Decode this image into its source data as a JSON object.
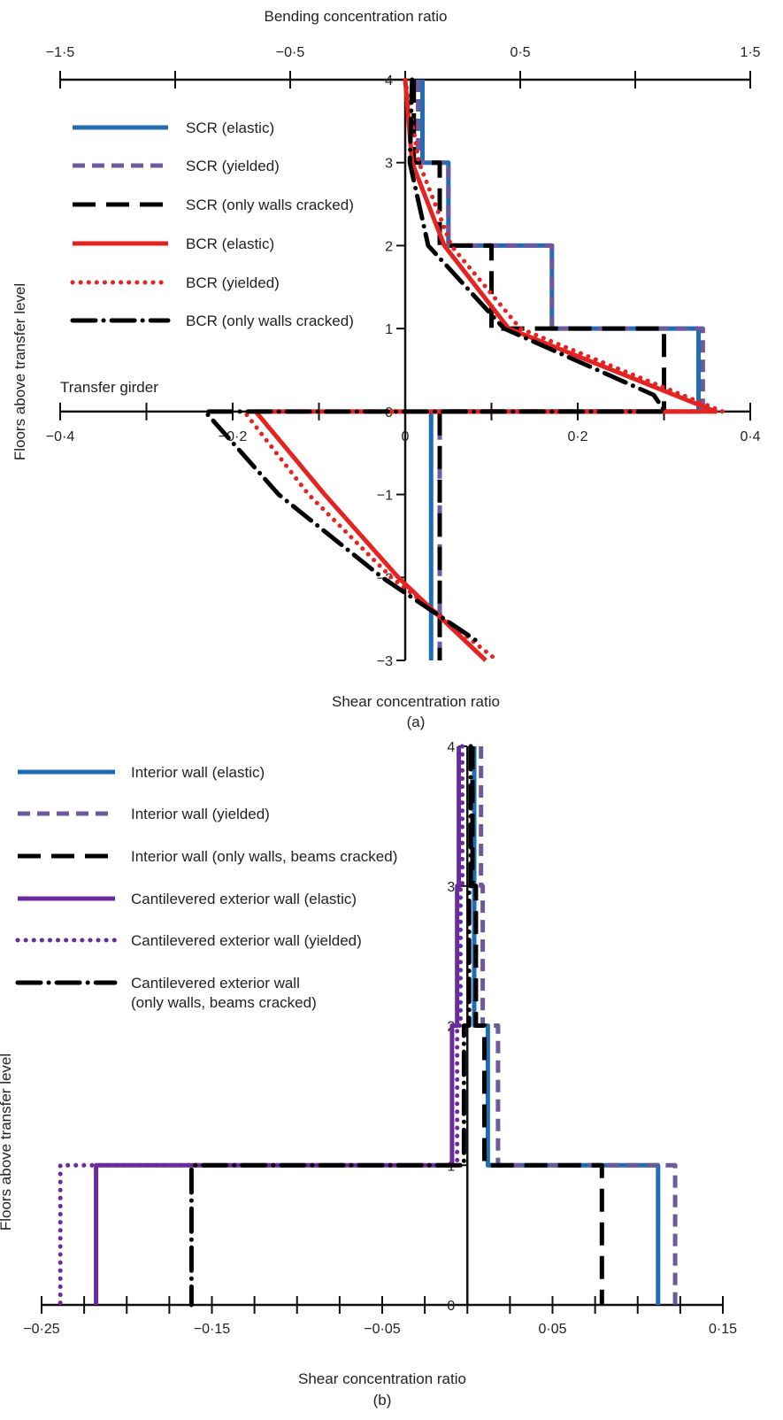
{
  "chart_data": [
    {
      "type": "line",
      "panel_label": "(a)",
      "ylabel": "Floors above transfer level",
      "annotation": "Transfer girder",
      "y_ticks": [
        "4",
        "3",
        "2",
        "1",
        "0",
        "−1",
        "−2",
        "−3"
      ],
      "top_axis": {
        "label": "Bending concentration ratio",
        "range": [
          -1.5,
          1.5
        ],
        "tick_labels": [
          "−1·5",
          "−0·5",
          "0·5",
          "1·5"
        ],
        "tick_values": [
          -1.5,
          -0.5,
          0.5,
          1.5
        ]
      },
      "bottom_axis": {
        "label": "Shear concentration ratio",
        "range": [
          -0.4,
          0.4
        ],
        "tick_labels": [
          "−0·4",
          "−0·2",
          "0",
          "0·2",
          "0·4"
        ],
        "tick_values": [
          -0.4,
          -0.2,
          0,
          0.2,
          0.4
        ]
      },
      "series": [
        {
          "name": "SCR (elastic)",
          "axis": "bottom",
          "color": "#1f6db5",
          "style": "solid",
          "points": [
            [
              0.02,
              4
            ],
            [
              0.02,
              3
            ],
            [
              0.05,
              3
            ],
            [
              0.05,
              2
            ],
            [
              0.17,
              2
            ],
            [
              0.17,
              1
            ],
            [
              0.34,
              1
            ],
            [
              0.34,
              0
            ],
            [
              0.03,
              0
            ],
            [
              0.03,
              -3
            ]
          ]
        },
        {
          "name": "SCR (yielded)",
          "axis": "bottom",
          "color": "#6e5a9b",
          "style": "dashed",
          "points": [
            [
              0.015,
              4
            ],
            [
              0.015,
              3
            ],
            [
              0.05,
              3
            ],
            [
              0.05,
              2
            ],
            [
              0.17,
              2
            ],
            [
              0.17,
              1
            ],
            [
              0.345,
              1
            ],
            [
              0.345,
              0
            ],
            [
              0.04,
              0
            ],
            [
              0.04,
              -3
            ]
          ]
        },
        {
          "name": "SCR (only walls cracked)",
          "axis": "bottom",
          "color": "#000000",
          "style": "longdash",
          "points": [
            [
              0.01,
              4
            ],
            [
              0.01,
              3
            ],
            [
              0.04,
              3
            ],
            [
              0.04,
              2
            ],
            [
              0.1,
              2
            ],
            [
              0.1,
              1
            ],
            [
              0.3,
              1
            ],
            [
              0.3,
              0
            ],
            [
              0.04,
              0
            ],
            [
              0.04,
              -3
            ]
          ]
        },
        {
          "name": "BCR (elastic)",
          "axis": "top",
          "color": "#e52421",
          "style": "solid",
          "points": [
            [
              0.0,
              4
            ],
            [
              0.03,
              3
            ],
            [
              0.17,
              2
            ],
            [
              0.45,
              1
            ],
            [
              1.35,
              0
            ],
            [
              -0.65,
              0
            ],
            [
              -0.35,
              -1
            ],
            [
              -0.03,
              -2
            ],
            [
              0.35,
              -3
            ]
          ]
        },
        {
          "name": "BCR (yielded)",
          "axis": "top",
          "color": "#e52421",
          "style": "dotted",
          "points": [
            [
              0.0,
              4
            ],
            [
              0.06,
              3
            ],
            [
              0.2,
              2
            ],
            [
              0.5,
              1
            ],
            [
              1.38,
              0
            ],
            [
              -0.7,
              0
            ],
            [
              -0.42,
              -1
            ],
            [
              -0.06,
              -2
            ],
            [
              0.4,
              -3
            ]
          ]
        },
        {
          "name": "BCR (only walls cracked)",
          "axis": "top",
          "color": "#000000",
          "style": "dashdot",
          "points": [
            [
              0.03,
              4
            ],
            [
              0.02,
              3
            ],
            [
              0.1,
              2
            ],
            [
              0.43,
              1
            ],
            [
              1.08,
              0.2
            ],
            [
              1.13,
              0
            ],
            [
              -0.87,
              0
            ],
            [
              -0.55,
              -1
            ],
            [
              -0.1,
              -2
            ],
            [
              0.33,
              -2.8
            ]
          ]
        }
      ]
    },
    {
      "type": "line",
      "panel_label": "(b)",
      "ylabel": "Floors  above transfer level",
      "y_ticks": [
        "4",
        "3",
        "2",
        "1",
        "0"
      ],
      "bottom_axis": {
        "label": "Shear concentration ratio",
        "range": [
          -0.25,
          0.15
        ],
        "tick_labels": [
          "−0·25",
          "−0·15",
          "−0·05",
          "0·05",
          "0·15"
        ],
        "tick_values": [
          -0.25,
          -0.15,
          -0.05,
          0.05,
          0.15
        ]
      },
      "series": [
        {
          "name": "Interior wall (elastic)",
          "color": "#1f6db5",
          "style": "solid",
          "points": [
            [
              0.004,
              4
            ],
            [
              0.004,
              3
            ],
            [
              0.004,
              3
            ],
            [
              0.004,
              2
            ],
            [
              0.012,
              2
            ],
            [
              0.012,
              1
            ],
            [
              0.112,
              1
            ],
            [
              0.112,
              0
            ]
          ]
        },
        {
          "name": "Interior wall (yielded)",
          "color": "#6e5a9b",
          "style": "dashed",
          "points": [
            [
              0.008,
              4
            ],
            [
              0.008,
              3
            ],
            [
              0.009,
              3
            ],
            [
              0.009,
              2
            ],
            [
              0.018,
              2
            ],
            [
              0.018,
              1
            ],
            [
              0.122,
              1
            ],
            [
              0.122,
              0
            ]
          ]
        },
        {
          "name": "Interior wall (only walls, beams cracked)",
          "color": "#000000",
          "style": "longdash",
          "points": [
            [
              0.003,
              4
            ],
            [
              0.003,
              3
            ],
            [
              0.005,
              3
            ],
            [
              0.005,
              2
            ],
            [
              0.01,
              2
            ],
            [
              0.01,
              1
            ],
            [
              0.079,
              1
            ],
            [
              0.079,
              0
            ]
          ]
        },
        {
          "name": "Cantilevered exterior wall (elastic)",
          "color": "#6a2c9a",
          "style": "solid",
          "points": [
            [
              -0.005,
              4
            ],
            [
              -0.005,
              3
            ],
            [
              -0.006,
              3
            ],
            [
              -0.006,
              2
            ],
            [
              -0.009,
              2
            ],
            [
              -0.009,
              1
            ],
            [
              -0.218,
              1
            ],
            [
              -0.218,
              0
            ]
          ]
        },
        {
          "name": "Cantilevered exterior wall (yielded)",
          "color": "#6a2c9a",
          "style": "dotted",
          "points": [
            [
              -0.003,
              4
            ],
            [
              -0.003,
              3
            ],
            [
              -0.004,
              3
            ],
            [
              -0.004,
              2
            ],
            [
              -0.006,
              2
            ],
            [
              -0.006,
              1
            ],
            [
              -0.239,
              1
            ],
            [
              -0.239,
              0
            ]
          ]
        },
        {
          "name": "Cantilevered exterior wall\n(only walls, beams cracked)",
          "color": "#000000",
          "style": "dashdot",
          "points": [
            [
              0.002,
              4
            ],
            [
              0.002,
              3
            ],
            [
              0.001,
              3
            ],
            [
              0.001,
              2
            ],
            [
              -0.002,
              2
            ],
            [
              -0.002,
              1
            ],
            [
              -0.162,
              1
            ],
            [
              -0.162,
              0
            ]
          ]
        }
      ]
    }
  ]
}
